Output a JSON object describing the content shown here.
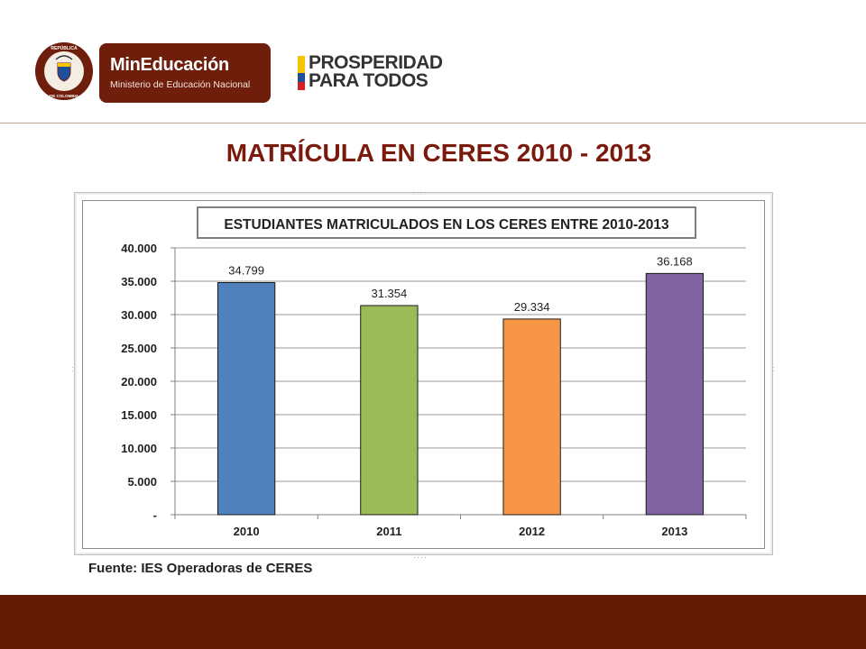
{
  "header": {
    "seal_text_top": "REPÚBLICA",
    "seal_text_bottom": "DE COLOMBIA",
    "brand_name": "MinEducación",
    "brand_subtitle": "Ministerio de Educación Nacional",
    "slogan_line1": "PROSPERIDAD",
    "slogan_line2": "PARA TODOS"
  },
  "slide": {
    "title": "MATRÍCULA EN CERES 2010 - 2013",
    "source": "Fuente: IES Operadoras de CERES"
  },
  "colors": {
    "brand": "#6f1e0c",
    "footer": "#621a03",
    "title": "#7a1a0c",
    "flag_yellow": "#f6c500",
    "flag_blue": "#1f4e9c",
    "flag_red": "#d42027"
  },
  "chart_data": {
    "type": "bar",
    "title": "ESTUDIANTES MATRICULADOS EN LOS CERES ENTRE 2010-2013",
    "categories": [
      "2010",
      "2011",
      "2012",
      "2013"
    ],
    "values": [
      34799,
      31354,
      29334,
      36168
    ],
    "value_labels": [
      "34.799",
      "31.354",
      "29.334",
      "36.168"
    ],
    "bar_colors": [
      "#4f81bd",
      "#9bbb59",
      "#f79646",
      "#8064a2"
    ],
    "ylim": [
      0,
      40000
    ],
    "yticks": [
      0,
      5000,
      10000,
      15000,
      20000,
      25000,
      30000,
      35000,
      40000
    ],
    "ytick_labels": [
      "-",
      "5.000",
      "10.000",
      "15.000",
      "20.000",
      "25.000",
      "30.000",
      "35.000",
      "40.000"
    ],
    "xlabel": "",
    "ylabel": "",
    "grid": true,
    "legend": false
  }
}
